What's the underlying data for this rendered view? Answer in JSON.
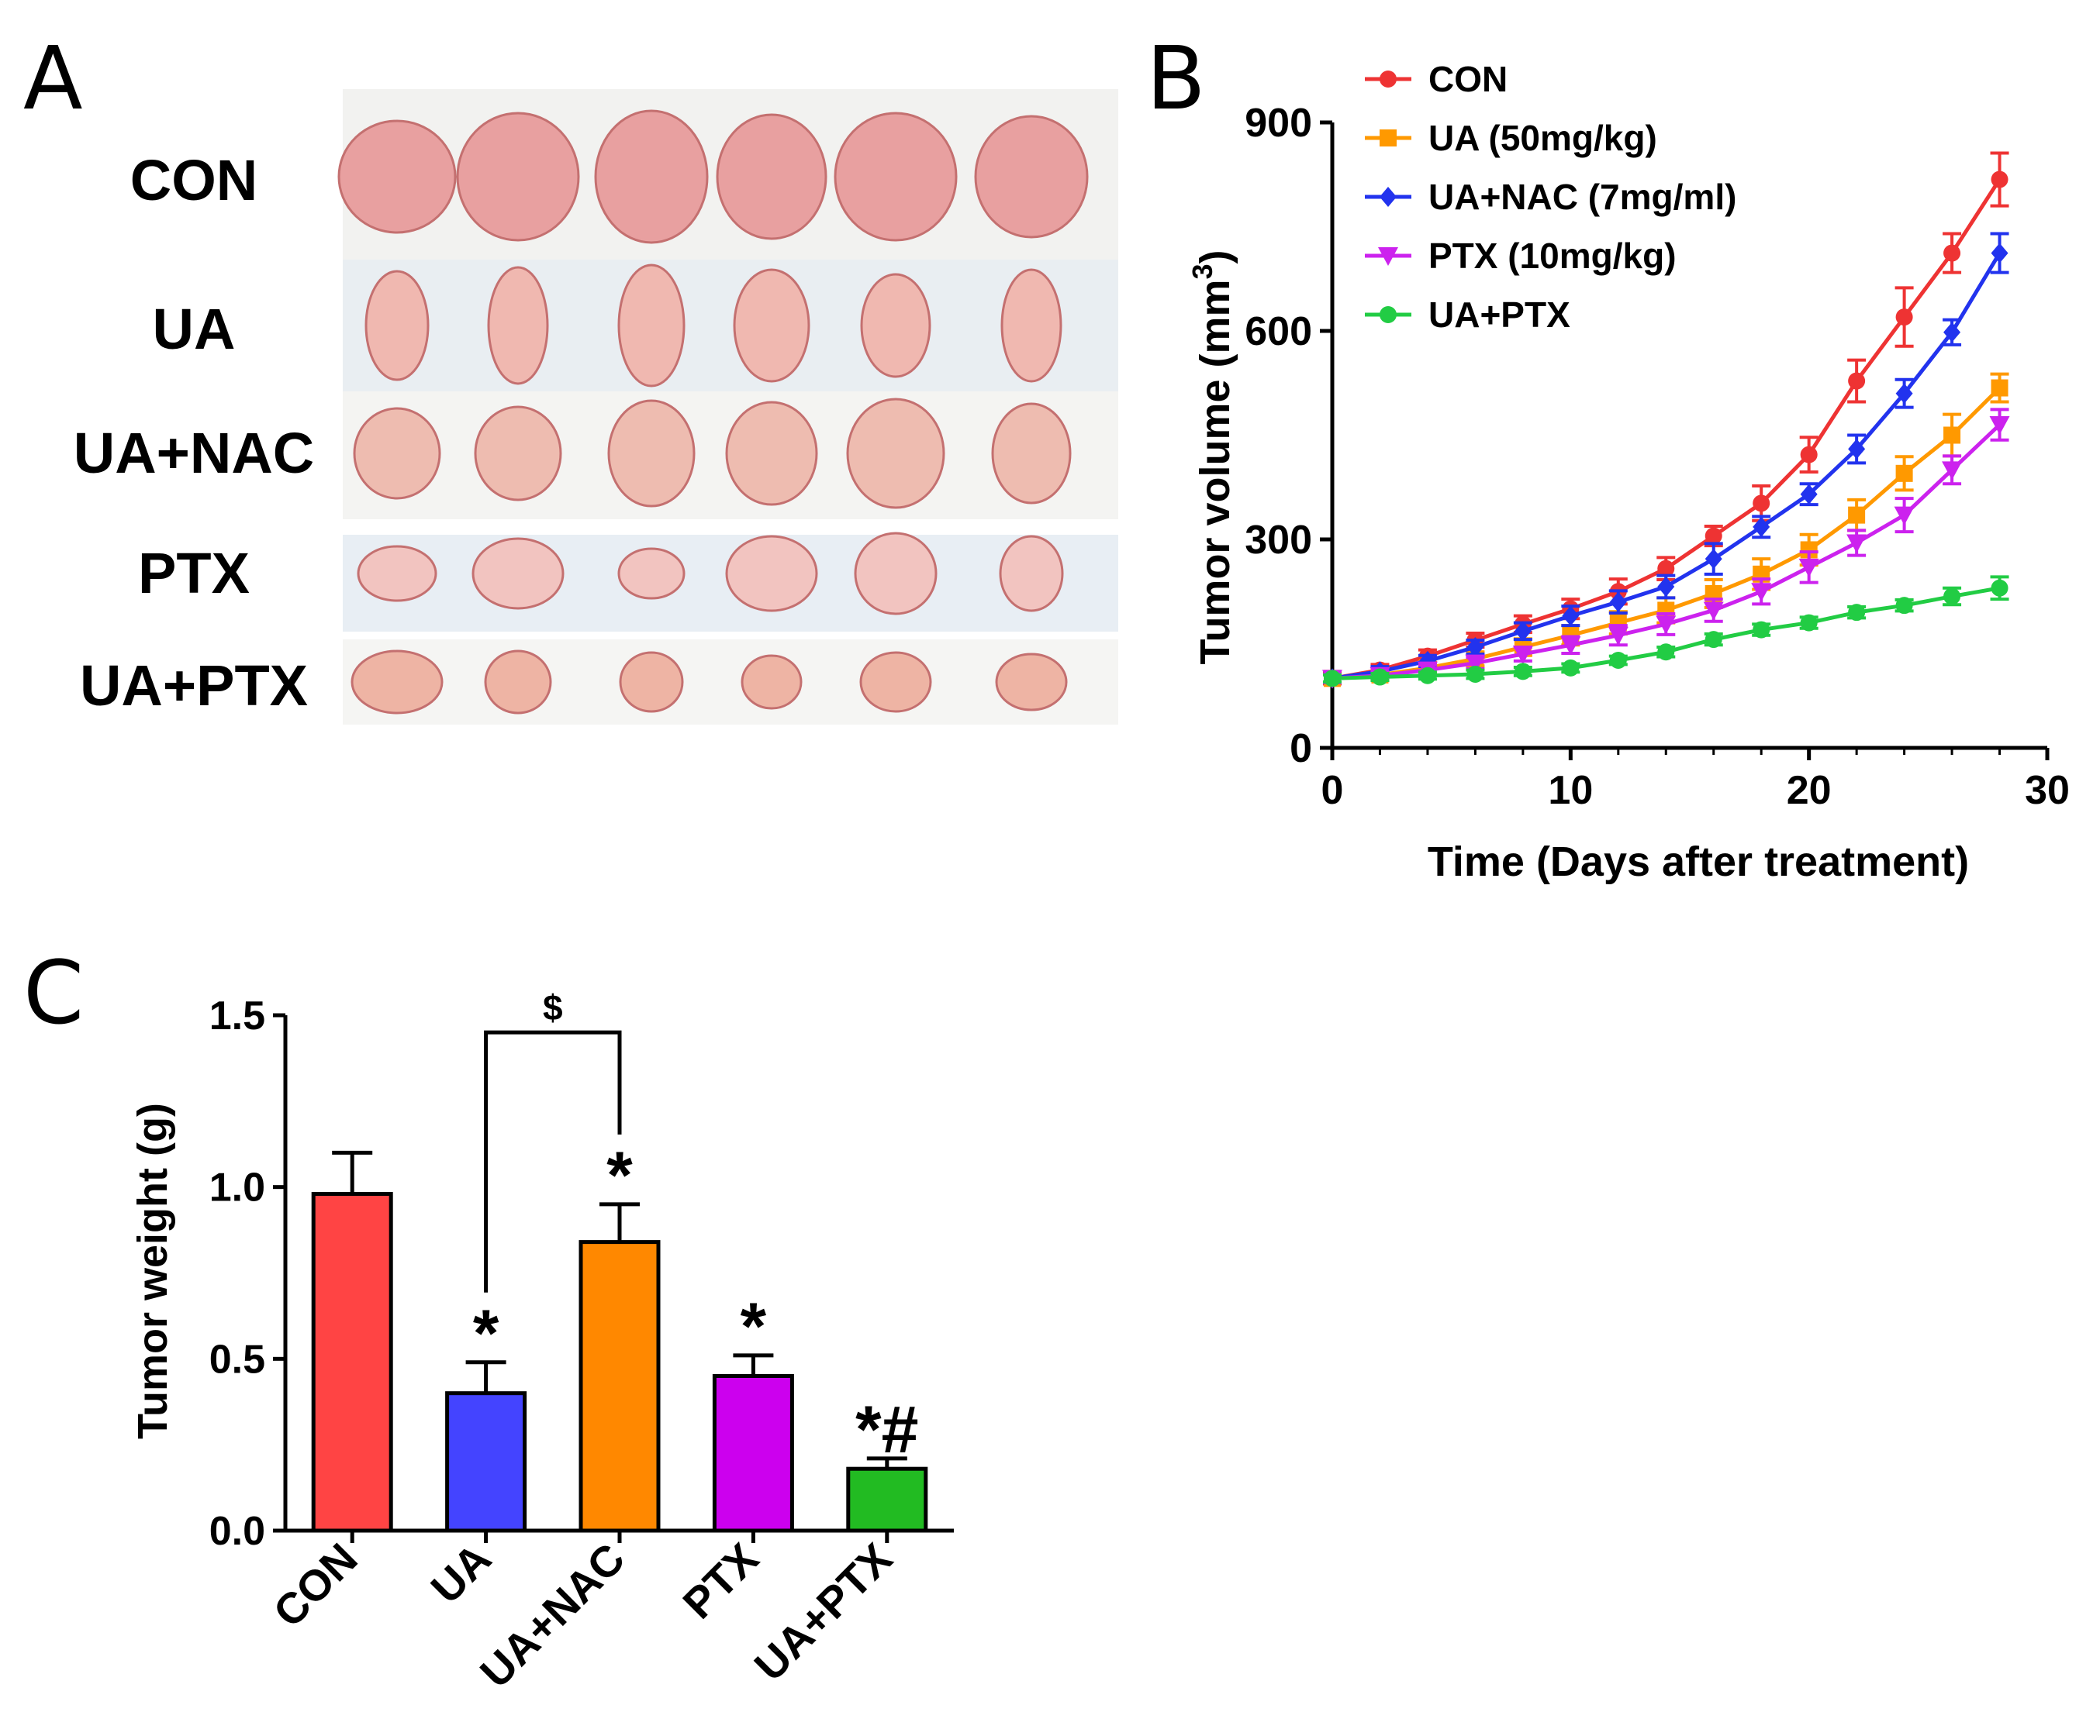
{
  "panels": {
    "a": {
      "letter": "A",
      "row_labels": [
        "CON",
        "UA",
        "UA+NAC",
        "PTX",
        "UA+PTX"
      ],
      "tumors_per_row": 6
    },
    "b": {
      "letter": "B"
    },
    "c": {
      "letter": "C"
    }
  },
  "chart_data": [
    {
      "id": "B",
      "type": "line",
      "title": "",
      "xlabel": "Time (Days after treatment)",
      "ylabel_main": "Tumor volume (mm",
      "ylabel_sup": "3",
      "ylabel_end": ")",
      "xlim": [
        0,
        30
      ],
      "ylim": [
        0,
        900
      ],
      "xticks": [
        0,
        10,
        20,
        30
      ],
      "yticks": [
        0,
        300,
        600,
        900
      ],
      "x": [
        0,
        2,
        4,
        6,
        8,
        10,
        12,
        14,
        16,
        18,
        20,
        22,
        24,
        26,
        28
      ],
      "legend_position": "top-left",
      "series": [
        {
          "name": "CON",
          "color": "#ee3333",
          "marker": "circle",
          "values": [
            100,
            112,
            132,
            155,
            178,
            200,
            225,
            258,
            305,
            352,
            422,
            528,
            620,
            712,
            818
          ],
          "errors": [
            8,
            8,
            9,
            10,
            12,
            14,
            18,
            16,
            14,
            25,
            25,
            30,
            42,
            28,
            38
          ]
        },
        {
          "name": "UA (50mg/kg)",
          "color": "#ff9900",
          "marker": "square",
          "values": [
            100,
            105,
            115,
            128,
            145,
            162,
            180,
            198,
            222,
            250,
            285,
            335,
            395,
            450,
            518
          ],
          "errors": [
            6,
            7,
            8,
            10,
            12,
            14,
            16,
            18,
            20,
            22,
            22,
            22,
            24,
            30,
            20
          ]
        },
        {
          "name": "UA+NAC (7mg/ml)",
          "color": "#2233ee",
          "marker": "diamond",
          "values": [
            100,
            110,
            125,
            145,
            168,
            190,
            210,
            232,
            272,
            318,
            365,
            430,
            510,
            598,
            712
          ],
          "errors": [
            6,
            7,
            8,
            10,
            12,
            14,
            16,
            16,
            22,
            15,
            15,
            20,
            20,
            18,
            28
          ]
        },
        {
          "name": "PTX (10mg/kg)",
          "color": "#cc22ee",
          "marker": "triangle-down",
          "values": [
            100,
            104,
            112,
            122,
            135,
            148,
            162,
            178,
            198,
            225,
            260,
            295,
            335,
            400,
            465
          ],
          "errors": [
            6,
            6,
            7,
            8,
            10,
            12,
            14,
            15,
            16,
            18,
            22,
            18,
            24,
            20,
            22
          ]
        },
        {
          "name": "UA+PTX",
          "color": "#22cc44",
          "marker": "circle",
          "values": [
            100,
            102,
            104,
            106,
            110,
            115,
            126,
            138,
            156,
            170,
            180,
            195,
            205,
            218,
            230
          ],
          "errors": [
            5,
            5,
            5,
            6,
            6,
            6,
            6,
            7,
            8,
            8,
            8,
            8,
            8,
            12,
            16
          ]
        }
      ]
    },
    {
      "id": "C",
      "type": "bar",
      "title": "",
      "xlabel": "",
      "ylabel": "Tumor weight (g)",
      "ylim": [
        0,
        1.5
      ],
      "yticks": [
        "0.0",
        "0.5",
        "1.0",
        "1.5"
      ],
      "categories": [
        "CON",
        "UA",
        "UA+NAC",
        "PTX",
        "UA+PTX"
      ],
      "values": [
        0.98,
        0.4,
        0.84,
        0.45,
        0.18
      ],
      "errors": [
        0.12,
        0.09,
        0.11,
        0.06,
        0.03
      ],
      "colors": [
        "#ff4444",
        "#4444ff",
        "#ff8800",
        "#cc00ee",
        "#22bb22"
      ],
      "annotations": [
        "",
        "*",
        "*",
        "*",
        "*#"
      ],
      "bracket": {
        "from": "UA",
        "to": "UA+NAC",
        "label": "$",
        "level": 1.45
      }
    }
  ]
}
